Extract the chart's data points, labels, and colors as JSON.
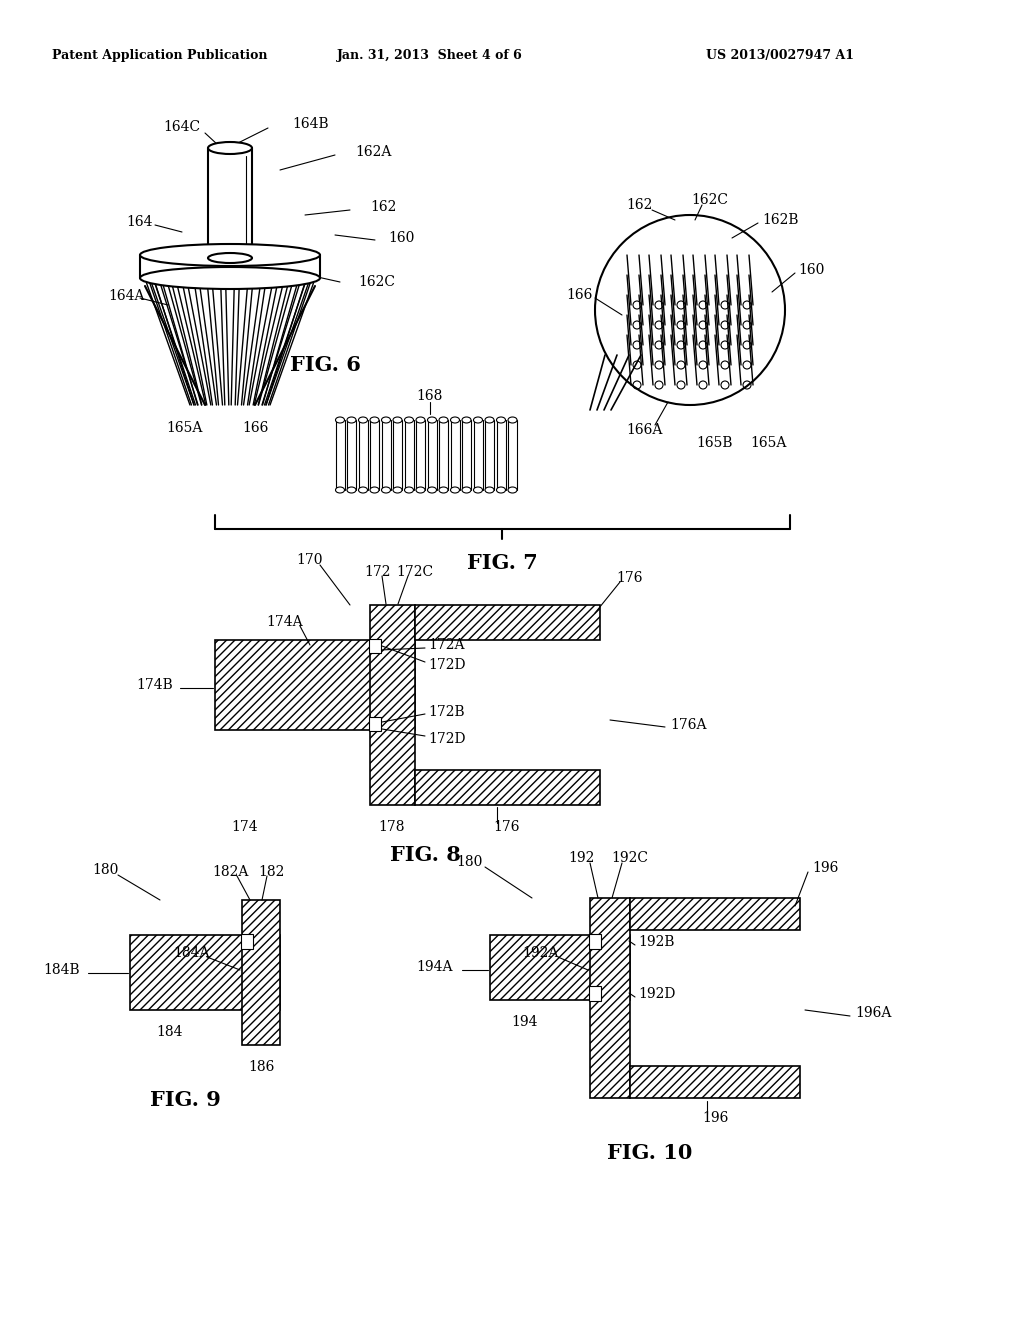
{
  "bg_color": "#ffffff",
  "header_left": "Patent Application Publication",
  "header_mid": "Jan. 31, 2013  Sheet 4 of 6",
  "header_right": "US 2013/0027947 A1",
  "fig_label_fontsize": 15,
  "annotation_fontsize": 10,
  "line_color": "#000000",
  "fig6_label": "FIG. 6",
  "fig7_label": "FIG. 7",
  "fig8_label": "FIG. 8",
  "fig9_label": "FIG. 9",
  "fig10_label": "FIG. 10"
}
